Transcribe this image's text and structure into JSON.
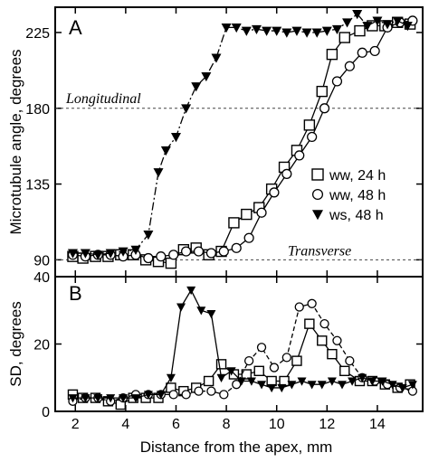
{
  "chart_data": [
    {
      "type": "scatter",
      "panel_label": "A",
      "ylabel": "Microtubule angle, degrees",
      "xlabel": "",
      "xlim": [
        1.2,
        15.8
      ],
      "ylim": [
        80,
        240
      ],
      "x_ticks": [
        2,
        4,
        6,
        8,
        10,
        12,
        14
      ],
      "y_ticks": [
        90,
        135,
        180,
        225
      ],
      "reference_lines": [
        {
          "y": 180,
          "label": "Longitudinal"
        },
        {
          "y": 90,
          "label": "Transverse"
        }
      ],
      "legend_placement": "right",
      "series": [
        {
          "name": "ww, 24 h",
          "marker": "open-square",
          "line_style": "solid",
          "x": [
            1.9,
            2.3,
            2.8,
            3.3,
            3.8,
            4.3,
            4.8,
            5.3,
            5.8,
            6.3,
            6.8,
            7.3,
            7.8,
            8.3,
            8.8,
            9.3,
            9.8,
            10.3,
            10.8,
            11.3,
            11.8,
            12.2,
            12.7,
            13.3,
            13.8,
            14.3,
            14.8,
            15.3
          ],
          "y": [
            92,
            91,
            92,
            92,
            93,
            93,
            90,
            89,
            88,
            96,
            97,
            93,
            95,
            112,
            117,
            121,
            132,
            145,
            155,
            170,
            190,
            212,
            222,
            226,
            229,
            229,
            231,
            230
          ]
        },
        {
          "name": "ww, 48 h",
          "marker": "open-circle",
          "line_style": "solid",
          "x": [
            1.9,
            2.4,
            2.9,
            3.4,
            3.9,
            4.4,
            4.9,
            5.4,
            5.9,
            6.4,
            6.9,
            7.4,
            7.9,
            8.4,
            8.9,
            9.4,
            9.9,
            10.4,
            10.9,
            11.4,
            11.9,
            12.4,
            12.9,
            13.4,
            13.9,
            14.4,
            14.9,
            15.4
          ],
          "y": [
            93,
            92,
            93,
            93,
            92,
            93,
            91,
            92,
            93,
            95,
            95,
            94,
            95,
            97,
            103,
            118,
            130,
            141,
            152,
            163,
            180,
            196,
            205,
            213,
            214,
            228,
            231,
            232
          ]
        },
        {
          "name": "ws,  48 h",
          "marker": "filled-triangle-down",
          "line_style": "dash-dot",
          "x": [
            1.9,
            2.4,
            2.9,
            3.4,
            3.9,
            4.4,
            4.9,
            5.3,
            5.6,
            6.0,
            6.4,
            6.8,
            7.2,
            7.6,
            8.0,
            8.4,
            8.8,
            9.2,
            9.6,
            10.0,
            10.4,
            10.8,
            11.2,
            11.6,
            12.0,
            12.4,
            12.8,
            13.2,
            13.6,
            14.0,
            14.4,
            14.8,
            15.2
          ],
          "y": [
            94,
            94,
            93,
            94,
            95,
            96,
            105,
            142,
            155,
            163,
            180,
            193,
            199,
            210,
            228,
            228,
            226,
            227,
            226,
            226,
            225,
            226,
            225,
            225,
            226,
            227,
            231,
            236,
            229,
            232,
            230,
            232,
            229
          ]
        }
      ]
    },
    {
      "type": "scatter",
      "panel_label": "B",
      "ylabel": "SD, degrees",
      "xlabel": "Distance from the apex, mm",
      "xlim": [
        1.2,
        15.8
      ],
      "ylim": [
        0,
        40
      ],
      "x_ticks": [
        2,
        4,
        6,
        8,
        10,
        12,
        14
      ],
      "y_ticks": [
        0,
        20,
        40
      ],
      "series": [
        {
          "name": "ww, 24 h",
          "marker": "open-square",
          "line_style": "solid",
          "x": [
            1.9,
            2.3,
            2.8,
            3.3,
            3.8,
            4.3,
            4.8,
            5.3,
            5.8,
            6.3,
            6.8,
            7.3,
            7.8,
            8.3,
            8.8,
            9.3,
            9.8,
            10.3,
            10.8,
            11.3,
            11.8,
            12.2,
            12.7,
            13.3,
            13.8,
            14.3,
            14.8,
            15.3
          ],
          "y": [
            5,
            4,
            4,
            3,
            2,
            4,
            4,
            4,
            7,
            6,
            7,
            9,
            14,
            11,
            11,
            12,
            9,
            9,
            15,
            26,
            21,
            17,
            12,
            9,
            9,
            8,
            7,
            8
          ]
        },
        {
          "name": "ww, 48 h",
          "marker": "open-circle",
          "line_style": "dashed",
          "x": [
            1.9,
            2.4,
            2.9,
            3.4,
            3.9,
            4.4,
            4.9,
            5.4,
            5.9,
            6.4,
            6.9,
            7.4,
            7.9,
            8.4,
            8.9,
            9.4,
            9.9,
            10.4,
            10.9,
            11.4,
            11.9,
            12.4,
            12.9,
            13.4,
            13.9,
            14.4,
            14.9,
            15.4
          ],
          "y": [
            3,
            4,
            4,
            3,
            4,
            5,
            5,
            5,
            5,
            5,
            6,
            6,
            5,
            8,
            15,
            19,
            13,
            16,
            31,
            32,
            26,
            21,
            15,
            10,
            9,
            8,
            7,
            6
          ]
        },
        {
          "name": "ws,  48 h",
          "marker": "filled-triangle-down",
          "line_style": "solid",
          "x": [
            1.9,
            2.4,
            2.9,
            3.4,
            3.9,
            4.4,
            4.9,
            5.4,
            5.8,
            6.2,
            6.6,
            7.0,
            7.4,
            7.8,
            8.2,
            8.6,
            9.0,
            9.4,
            9.8,
            10.2,
            10.6,
            11.0,
            11.4,
            11.8,
            12.2,
            12.6,
            13.0,
            13.4,
            13.8,
            14.2,
            14.6,
            15.0,
            15.4
          ],
          "y": [
            4,
            4,
            4,
            4,
            4,
            4,
            5,
            5,
            10,
            31,
            36,
            30,
            29,
            10,
            12,
            9,
            9,
            8,
            7,
            7,
            8,
            9,
            8,
            8,
            9,
            8,
            9,
            10,
            9,
            9,
            8,
            7,
            8
          ]
        }
      ]
    }
  ]
}
